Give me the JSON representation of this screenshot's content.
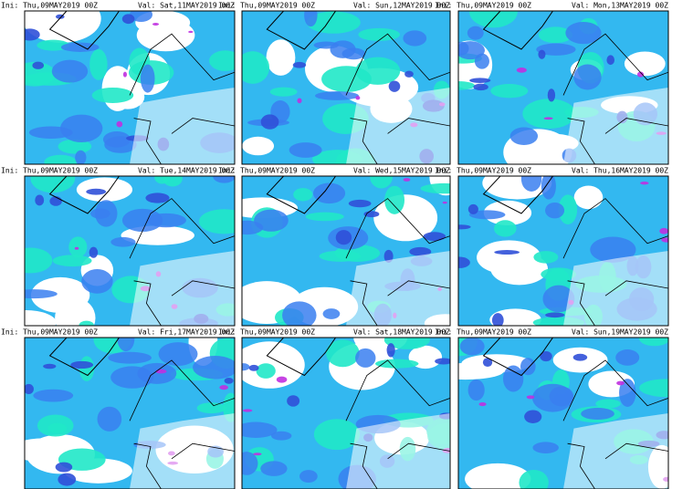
{
  "panels": [
    {
      "ini": "Ini: Thu,09MAY2019 00Z",
      "val": "Val: Sat,11MAY2019 00Z"
    },
    {
      "ini": "Ini: Thu,09MAY2019 00Z",
      "val": "Val: Sun,12MAY2019 00Z"
    },
    {
      "ini": "Ini: Thu,09MAY2019 00Z",
      "val": "Val: Mon,13MAY2019 00Z"
    },
    {
      "ini": "Ini: Thu,09MAY2019 00Z",
      "val": "Val: Tue,14MAY2019 00Z"
    },
    {
      "ini": "Ini: Thu,09MAY2019 00Z",
      "val": "Val: Wed,15MAY2019 00Z"
    },
    {
      "ini": "Ini: Thu,09MAY2019 00Z",
      "val": "Val: Thu,16MAY2019 00Z"
    },
    {
      "ini": "Ini: Thu,09MAY2019 00Z",
      "val": "Val: Fri,17MAY2019 00Z"
    },
    {
      "ini": "Ini: Thu,09MAY2019 00Z",
      "val": "Val: Sat,18MAY2019 00Z"
    },
    {
      "ini": "Ini: Thu,09MAY2019 00Z",
      "val": "Val: Sun,19MAY2019 00Z"
    }
  ]
}
